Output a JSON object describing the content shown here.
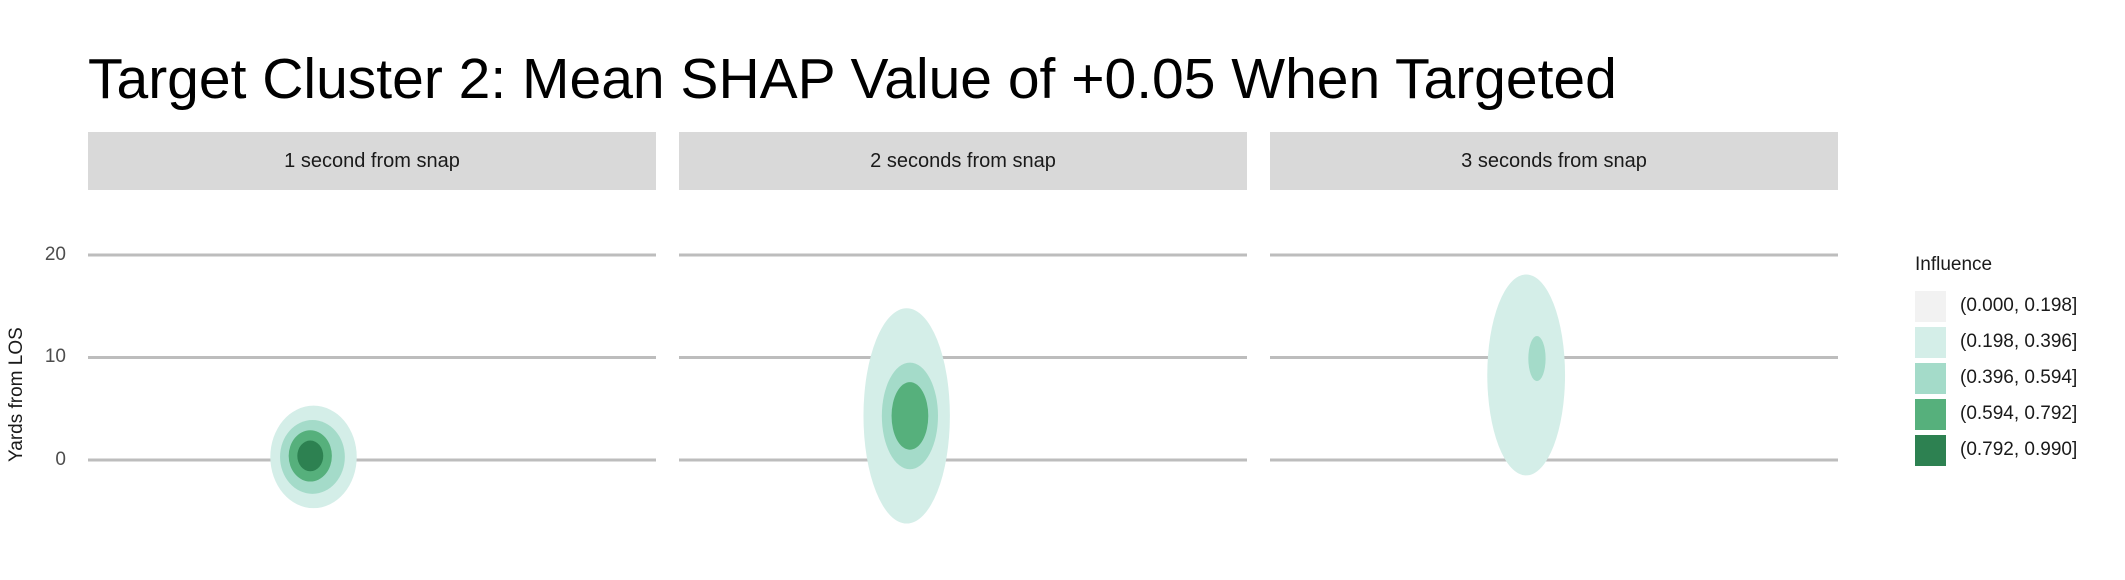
{
  "chart_data": {
    "type": "heatmap",
    "title": "Target Cluster 2: Mean SHAP Value of +0.05 When Targeted",
    "ylabel": "Yards from LOS",
    "xlabel": "",
    "y_ticks": [
      "20",
      "10",
      "0"
    ],
    "ylim": [
      -8.5,
      27
    ],
    "grid": "horizontal major gridlines",
    "legend": {
      "title": "Influence",
      "placement": "right",
      "bins": [
        {
          "label": "(0.000, 0.198]",
          "color": "#f2f2f2"
        },
        {
          "label": "(0.198, 0.396]",
          "color": "#d4eee8"
        },
        {
          "label": "(0.396, 0.594]",
          "color": "#a4dbc9"
        },
        {
          "label": "(0.594, 0.792]",
          "color": "#56b07c"
        },
        {
          "label": "(0.792, 0.990]",
          "color": "#2d8151"
        }
      ]
    },
    "facets": [
      {
        "label": "1 second from snap",
        "regions": [
          {
            "level": 1,
            "cx": -0.6,
            "cy": 0.3,
            "rx": 4.0,
            "ry": 5.0
          },
          {
            "level": 2,
            "cx": -0.7,
            "cy": 0.3,
            "rx": 3.0,
            "ry": 3.6
          },
          {
            "level": 3,
            "cx": -0.9,
            "cy": 0.4,
            "rx": 2.0,
            "ry": 2.5
          },
          {
            "level": 4,
            "cx": -0.9,
            "cy": 0.4,
            "rx": 1.2,
            "ry": 1.5
          }
        ]
      },
      {
        "label": "2 seconds from snap",
        "regions": [
          {
            "level": 1,
            "cx": -0.4,
            "cy": 4.3,
            "rx": 4.0,
            "ry": 10.5
          },
          {
            "level": 2,
            "cx": -0.1,
            "cy": 4.3,
            "rx": 2.6,
            "ry": 5.2
          },
          {
            "level": 3,
            "cx": -0.1,
            "cy": 4.3,
            "rx": 1.7,
            "ry": 3.3
          }
        ]
      },
      {
        "label": "3 seconds from snap",
        "regions": [
          {
            "level": 1,
            "cx": 0.2,
            "cy": 8.3,
            "rx": 3.6,
            "ry": 9.8
          },
          {
            "level": 2,
            "cx": 1.2,
            "cy": 9.9,
            "rx": 0.8,
            "ry": 2.2
          }
        ]
      }
    ]
  }
}
